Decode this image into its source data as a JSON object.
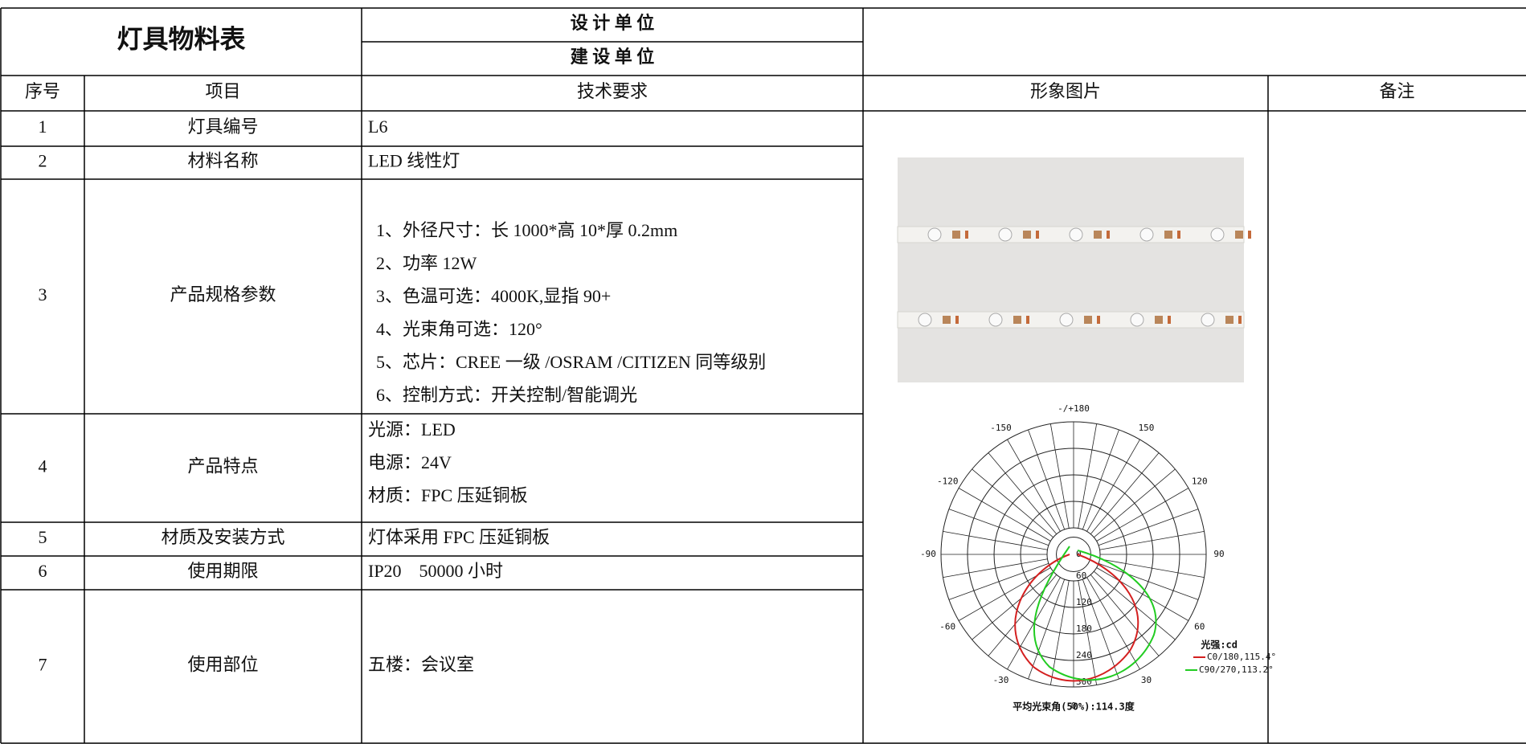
{
  "header": {
    "title": "灯具物料表",
    "design_unit": "设 计 单 位",
    "construction_unit": "建 设 单 位"
  },
  "table": {
    "columns": [
      "序号",
      "项目",
      "技术要求",
      "形象图片",
      "备注"
    ],
    "rows": [
      {
        "no": "1",
        "item": "灯具编号",
        "requirements": [
          "L6"
        ]
      },
      {
        "no": "2",
        "item": "材料名称",
        "requirements": [
          "LED 线性灯"
        ]
      },
      {
        "no": "3",
        "item": "产品规格参数",
        "requirements": [
          "1、外径尺寸：长 1000*高 10*厚 0.2mm",
          "2、功率 12W",
          "3、色温可选：4000K,显指 90+",
          "4、光束角可选：120°",
          "5、芯片：CREE 一级 /OSRAM /CITIZEN 同等级别",
          "6、控制方式：开关控制/智能调光"
        ]
      },
      {
        "no": "4",
        "item": "产品特点",
        "requirements": [
          "光源：LED",
          "电源：24V",
          "材质：FPC 压延铜板"
        ]
      },
      {
        "no": "5",
        "item": "材质及安装方式",
        "requirements": [
          "灯体采用 FPC 压延铜板"
        ]
      },
      {
        "no": "6",
        "item": "使用期限",
        "requirements": [
          "IP20　50000 小时"
        ]
      },
      {
        "no": "7",
        "item": "使用部位",
        "requirements": [
          "五楼：会议室"
        ]
      }
    ]
  },
  "polar_diagram": {
    "angle_labels": [
      "-/+180",
      "-150",
      "150",
      "-120",
      "120",
      "-90",
      "90",
      "-60",
      "60",
      "-30",
      "30",
      "0"
    ],
    "radial_labels": [
      "0",
      "60",
      "120",
      "180",
      "240",
      "300"
    ],
    "unit": "光强:cd",
    "legend": [
      "C0/180,115.4°",
      "C90/270,113.2°"
    ],
    "footer": "平均光束角(50%):114.3度"
  }
}
